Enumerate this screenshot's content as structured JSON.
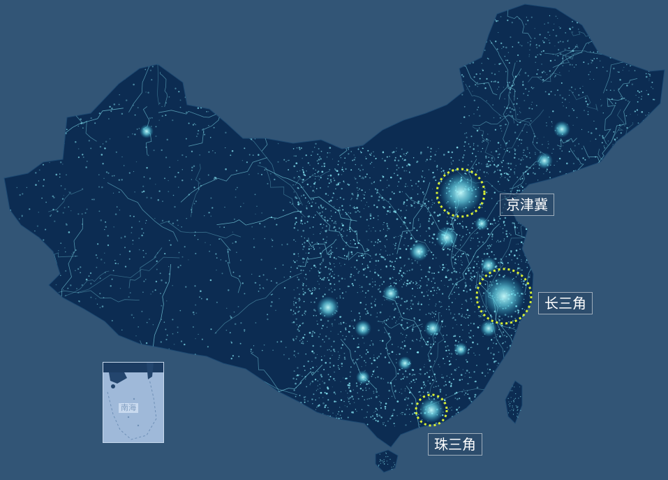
{
  "map": {
    "background_color": "#325576",
    "land_color": "#0c2c52",
    "light_color": "#8ff3ff",
    "highlight_ring_color": "#d8f034",
    "regions": [
      {
        "id": "jingjinji",
        "label": "京津冀"
      },
      {
        "id": "changsanjiao",
        "label": "长三角"
      },
      {
        "id": "zhusanjiao",
        "label": "珠三角"
      }
    ],
    "inset": {
      "caption": "南海",
      "background_color": "#9fb9d9"
    }
  }
}
